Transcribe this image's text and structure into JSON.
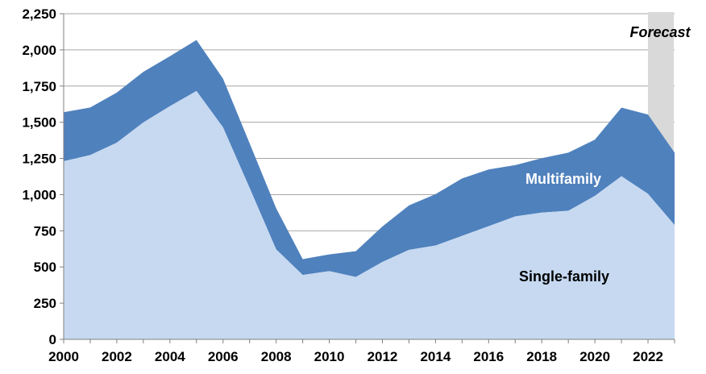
{
  "chart_data": {
    "type": "area",
    "stacked": true,
    "x": [
      2000,
      2001,
      2002,
      2003,
      2004,
      2005,
      2006,
      2007,
      2008,
      2009,
      2010,
      2011,
      2012,
      2013,
      2014,
      2015,
      2016,
      2017,
      2018,
      2019,
      2020,
      2021,
      2022,
      2023
    ],
    "series": [
      {
        "name": "Single-family",
        "color": "#c6d9f1",
        "values": [
          1231,
          1273,
          1359,
          1499,
          1611,
          1716,
          1465,
          1046,
          622,
          445,
          471,
          431,
          535,
          618,
          648,
          715,
          782,
          849,
          876,
          888,
          991,
          1127,
          1005,
          790
        ]
      },
      {
        "name": "Multifamily",
        "color": "#4f81bd",
        "values": [
          338,
          329,
          346,
          349,
          345,
          352,
          336,
          309,
          284,
          109,
          116,
          178,
          245,
          307,
          355,
          397,
          392,
          355,
          376,
          402,
          389,
          474,
          548,
          500
        ]
      }
    ],
    "xlim": [
      2000,
      2023
    ],
    "ylim": [
      0,
      2250
    ],
    "yticks": [
      0,
      250,
      500,
      750,
      1000,
      1250,
      1500,
      1750,
      2000,
      2250
    ],
    "ytick_labels": [
      "0",
      "250",
      "500",
      "750",
      "1,000",
      "1,250",
      "1,500",
      "1,750",
      "2,000",
      "2,250"
    ],
    "xticks": [
      2000,
      2002,
      2004,
      2006,
      2008,
      2010,
      2012,
      2014,
      2016,
      2018,
      2020,
      2022
    ],
    "xtick_labels": [
      "2000",
      "2002",
      "2004",
      "2006",
      "2008",
      "2010",
      "2012",
      "2014",
      "2016",
      "2018",
      "2020",
      "2022"
    ],
    "grid": true,
    "forecast": {
      "label": "Forecast",
      "x_start": 2022,
      "x_end": 2023,
      "color": "#d9d9d9"
    },
    "annotations": {
      "multifamily_label": "Multifamily",
      "single_family_label": "Single-family"
    }
  }
}
